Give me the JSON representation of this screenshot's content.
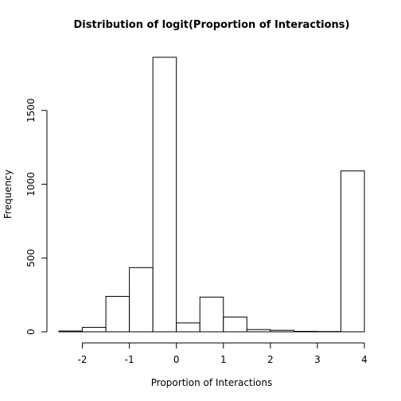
{
  "chart_data": {
    "type": "bar",
    "title": "Distribution of logit(Proportion of Interactions)",
    "xlabel": "Proportion of Interactions",
    "ylabel": "Frequency",
    "bin_edges": [
      -2.5,
      -2,
      -1.5,
      -1,
      -0.5,
      0,
      0.5,
      1,
      1.5,
      2,
      2.5,
      3,
      3.5,
      4
    ],
    "values": [
      5,
      30,
      240,
      435,
      1860,
      60,
      235,
      100,
      15,
      10,
      3,
      2,
      1090
    ],
    "xlim": [
      -2.5,
      4
    ],
    "ylim": [
      0,
      1860
    ],
    "xticks": [
      -2,
      -1,
      0,
      1,
      2,
      3,
      4
    ],
    "yticks": [
      0,
      500,
      1000,
      1500
    ],
    "xtick_labels": [
      "-2",
      "-1",
      "0",
      "1",
      "2",
      "3",
      "4"
    ],
    "ytick_labels": [
      "0",
      "500",
      "1000",
      "1500"
    ],
    "grid": false
  }
}
